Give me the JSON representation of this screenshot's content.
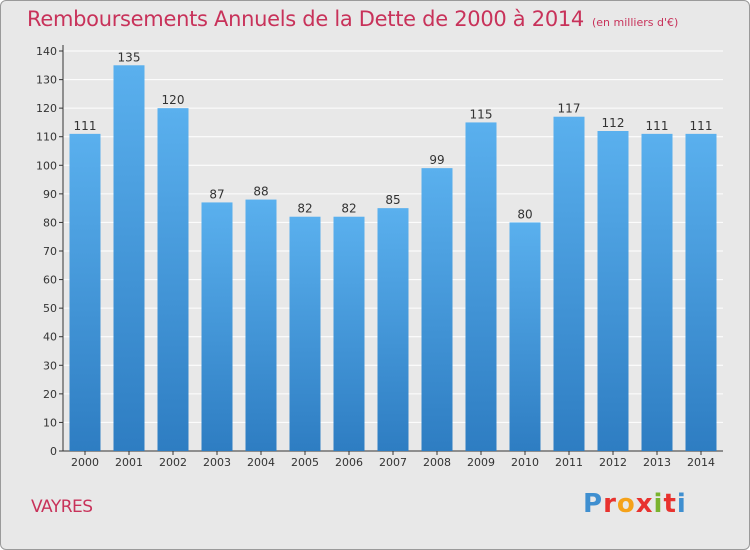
{
  "title": "Remboursements Annuels de la Dette de 2000 à 2014",
  "subtitle": "(en milliers d'€)",
  "city": "VAYRES",
  "brand": {
    "text": "Proxiti",
    "letter_colors": [
      "#3f8fd0",
      "#e8322e",
      "#f5a21a",
      "#e8322e",
      "#7ab32e",
      "#e8322e",
      "#3f8fd0"
    ]
  },
  "colors": {
    "title": "#c8325a",
    "bar_top": "#5ab0ee",
    "bar_bottom": "#2e7dc2",
    "grid": "#ffffff",
    "axis": "#333333",
    "background": "#e8e8e8"
  },
  "chart_data": {
    "type": "bar",
    "title": "Remboursements Annuels de la Dette de 2000 à 2014",
    "subtitle": "(en milliers d'€)",
    "xlabel": "",
    "ylabel": "",
    "categories": [
      "2000",
      "2001",
      "2002",
      "2003",
      "2004",
      "2005",
      "2006",
      "2007",
      "2008",
      "2009",
      "2010",
      "2011",
      "2012",
      "2013",
      "2014"
    ],
    "values": [
      111,
      135,
      120,
      87,
      88,
      82,
      82,
      85,
      99,
      115,
      80,
      117,
      112,
      111,
      111
    ],
    "ylim": [
      0,
      140
    ],
    "yticks": [
      0,
      10,
      20,
      30,
      40,
      50,
      60,
      70,
      80,
      90,
      100,
      110,
      120,
      130,
      140
    ],
    "grid": true,
    "legend": "none"
  }
}
